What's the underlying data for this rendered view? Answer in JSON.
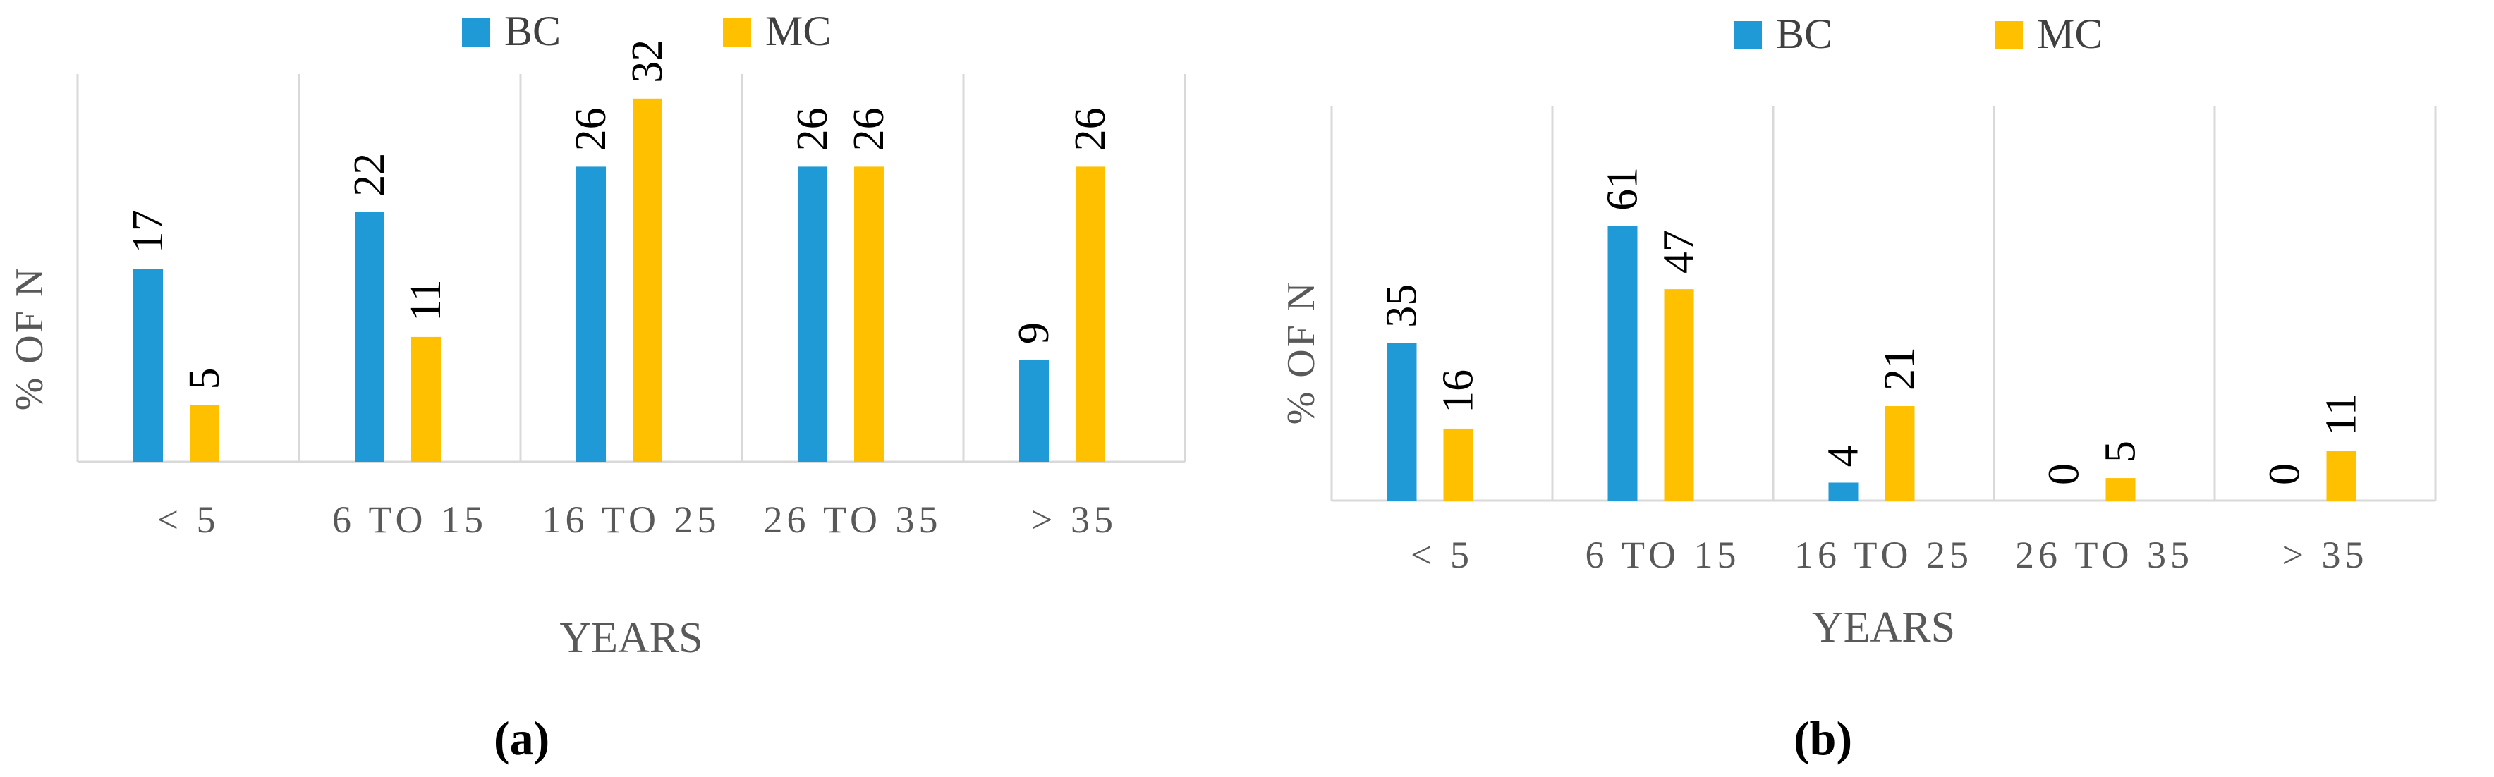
{
  "colors": {
    "BC": "#1f9ad6",
    "MC": "#ffc000",
    "grid": "#d9d9d9",
    "text": "#595959"
  },
  "chart_data": [
    {
      "type": "bar",
      "panel_label": "(a)",
      "categories": [
        "< 5",
        "6  TO 15",
        "16  TO 25",
        "26  TO 35",
        "> 35"
      ],
      "series": [
        {
          "name": "BC",
          "values": [
            17,
            22,
            26,
            26,
            9
          ]
        },
        {
          "name": "MC",
          "values": [
            5,
            11,
            32,
            26,
            26
          ]
        }
      ],
      "xlabel": "YEARS",
      "ylabel": "% OF N",
      "ylim": [
        0,
        100
      ],
      "legend": "top-center",
      "grid": "vertical category separators"
    },
    {
      "type": "bar",
      "panel_label": "(b)",
      "categories": [
        "< 5",
        "6  TO 15",
        "16  TO 25",
        "26  TO 35",
        "> 35"
      ],
      "series": [
        {
          "name": "BC",
          "values": [
            35,
            61,
            4,
            0,
            0
          ]
        },
        {
          "name": "MC",
          "values": [
            16,
            47,
            21,
            5,
            11
          ]
        }
      ],
      "xlabel": "YEARS",
      "ylabel": "% OF N",
      "ylim": [
        0,
        80
      ],
      "legend": "top-center",
      "grid": "vertical category separators"
    }
  ]
}
